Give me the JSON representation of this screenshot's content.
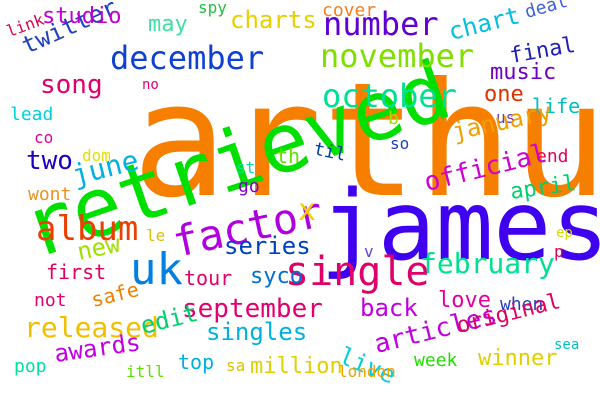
{
  "words": [
    {
      "text": "arthur",
      "color": "#f77f00"
    },
    {
      "text": "retrieved",
      "color": "#00e000"
    },
    {
      "text": "james",
      "color": "#4000f0"
    },
    {
      "text": "single",
      "color": "#e0006a"
    },
    {
      "text": "factor",
      "color": "#b000e0"
    },
    {
      "text": "uk",
      "color": "#0080e0"
    },
    {
      "text": "album",
      "color": "#e84000"
    },
    {
      "text": "november",
      "color": "#7fdf00"
    },
    {
      "text": "october",
      "color": "#00e090"
    },
    {
      "text": "december",
      "color": "#1040d0"
    },
    {
      "text": "number",
      "color": "#6000d0"
    },
    {
      "text": "charts",
      "color": "#e8d000"
    },
    {
      "text": "song",
      "color": "#e0006a"
    },
    {
      "text": "twitter",
      "color": "#2040c0"
    },
    {
      "text": "studio",
      "color": "#c000d0"
    },
    {
      "text": "may",
      "color": "#40e0a0"
    },
    {
      "text": "spy",
      "color": "#20c040"
    },
    {
      "text": "link",
      "color": "#e00050"
    },
    {
      "text": "cover",
      "color": "#f08020"
    },
    {
      "text": "chart",
      "color": "#00c0e0"
    },
    {
      "text": "deal",
      "color": "#4060e0"
    },
    {
      "text": "final",
      "color": "#2020b0"
    },
    {
      "text": "music",
      "color": "#7000c0"
    },
    {
      "text": "one",
      "color": "#e03000"
    },
    {
      "text": "life",
      "color": "#00c0c0"
    },
    {
      "text": "us",
      "color": "#6040c0"
    },
    {
      "text": "january",
      "color": "#f0a000"
    },
    {
      "text": "end",
      "color": "#e00060"
    },
    {
      "text": "so",
      "color": "#2040c0"
    },
    {
      "text": "til",
      "color": "#0040a0"
    },
    {
      "text": "th",
      "color": "#60e000"
    },
    {
      "text": "two",
      "color": "#2000c0"
    },
    {
      "text": "june",
      "color": "#00b0e0"
    },
    {
      "text": "no",
      "color": "#e00070"
    },
    {
      "text": "lead",
      "color": "#00d0e0"
    },
    {
      "text": "co",
      "color": "#e000a0"
    },
    {
      "text": "dom",
      "color": "#e0e000"
    },
    {
      "text": "wont",
      "color": "#f09020"
    },
    {
      "text": "go",
      "color": "#8000d0"
    },
    {
      "text": "st",
      "color": "#00e0a0"
    },
    {
      "text": "b",
      "color": "#a0e000"
    },
    {
      "text": "official",
      "color": "#d000d0"
    },
    {
      "text": "april",
      "color": "#00d070"
    },
    {
      "text": "x",
      "color": "#f0d000"
    },
    {
      "text": "series",
      "color": "#0040c0"
    },
    {
      "text": "new",
      "color": "#a0e000"
    },
    {
      "text": "le",
      "color": "#e0c000"
    },
    {
      "text": "february",
      "color": "#00e090"
    },
    {
      "text": "ep",
      "color": "#d0e000"
    },
    {
      "text": "p",
      "color": "#e00050"
    },
    {
      "text": "v",
      "color": "#6040e0"
    },
    {
      "text": "first",
      "color": "#e00060"
    },
    {
      "text": "tour",
      "color": "#e00070"
    },
    {
      "text": "syco",
      "color": "#0070d0"
    },
    {
      "text": "safe",
      "color": "#f08000"
    },
    {
      "text": "not",
      "color": "#e00070"
    },
    {
      "text": "released",
      "color": "#f0c000"
    },
    {
      "text": "september",
      "color": "#e00070"
    },
    {
      "text": "back",
      "color": "#c000e0"
    },
    {
      "text": "love",
      "color": "#e000a0"
    },
    {
      "text": "when",
      "color": "#2040c0"
    },
    {
      "text": "edit",
      "color": "#00d070"
    },
    {
      "text": "singles",
      "color": "#00b0e0"
    },
    {
      "text": "live",
      "color": "#00d0e0"
    },
    {
      "text": "articles",
      "color": "#c000e0"
    },
    {
      "text": "original",
      "color": "#e00060"
    },
    {
      "text": "awards",
      "color": "#c000e0"
    },
    {
      "text": "week",
      "color": "#20e000"
    },
    {
      "text": "winner",
      "color": "#e0d000"
    },
    {
      "text": "sea",
      "color": "#00c0c0"
    },
    {
      "text": "pop",
      "color": "#00e0a0"
    },
    {
      "text": "top",
      "color": "#00b0e0"
    },
    {
      "text": "sa",
      "color": "#e0c000"
    },
    {
      "text": "million",
      "color": "#e0d000"
    },
    {
      "text": "itll",
      "color": "#60e000"
    },
    {
      "text": "london",
      "color": "#f0a000"
    }
  ]
}
